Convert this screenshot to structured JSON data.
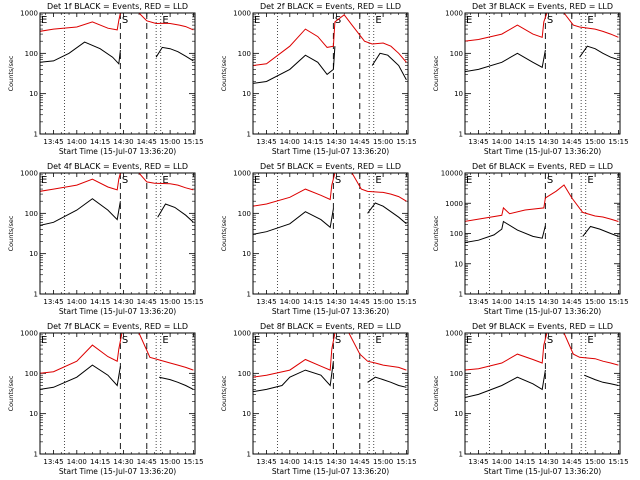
{
  "chart_data": [
    {
      "type": "line",
      "title": "Det 1f BLACK = Events, RED = LLD",
      "xlabel": "Start Time (15-Jul-07 13:36:20)",
      "ylabel": "Counts/sec",
      "y_scale": "log",
      "ylim": [
        1,
        1000
      ],
      "y_tick_labels": [
        "1",
        "10",
        "100",
        "1000"
      ],
      "x_tick_labels": [
        "13:45",
        "14:00",
        "14:15",
        "14:30",
        "14:45",
        "15:00",
        "15:15"
      ],
      "annotations": [
        "E",
        "S",
        "E"
      ],
      "series": [
        {
          "color": "#dd0000",
          "x": [
            "13:36",
            "13:45",
            "14:00",
            "14:10",
            "14:20",
            "14:26",
            "14:27",
            "14:28",
            "14:40",
            "14:45",
            "14:51",
            "14:57",
            "15:00",
            "15:06",
            "15:10",
            "15:15"
          ],
          "y": [
            350,
            400,
            450,
            600,
            420,
            380,
            650,
            1000,
            1000,
            640,
            550,
            560,
            550,
            500,
            460,
            380
          ]
        },
        {
          "color": "#000000",
          "x": [
            "13:36",
            "13:45",
            "13:55",
            "14:05",
            "14:15",
            "14:23",
            "14:27",
            "14:28",
            "14:50",
            "14:51",
            "14:55",
            "15:00",
            "15:05",
            "15:10",
            "15:15"
          ],
          "y": [
            60,
            65,
            100,
            190,
            130,
            80,
            55,
            120,
            null,
            80,
            140,
            130,
            110,
            85,
            65
          ]
        }
      ]
    },
    {
      "type": "line",
      "title": "Det 2f BLACK = Events, RED = LLD",
      "xlabel": "Start Time (15-Jul-07 13:36:20)",
      "ylabel": "Counts/sec",
      "y_scale": "log",
      "ylim": [
        1,
        1000
      ],
      "y_tick_labels": [
        "1",
        "10",
        "100",
        "1000"
      ],
      "x_tick_labels": [
        "13:45",
        "14:00",
        "14:15",
        "14:30",
        "14:45",
        "15:00",
        "15:15"
      ],
      "annotations": [
        "E",
        "S",
        "E"
      ],
      "series": [
        {
          "color": "#dd0000",
          "x": [
            "13:36",
            "13:45",
            "14:00",
            "14:10",
            "14:18",
            "14:24",
            "14:28",
            "14:29",
            "14:35",
            "14:40",
            "14:48",
            "14:53",
            "15:00",
            "15:05",
            "15:10",
            "15:15"
          ],
          "y": [
            50,
            55,
            150,
            400,
            260,
            140,
            150,
            600,
            900,
            500,
            200,
            170,
            180,
            150,
            100,
            60
          ]
        },
        {
          "color": "#000000",
          "x": [
            "13:36",
            "13:45",
            "14:00",
            "14:10",
            "14:18",
            "14:24",
            "14:28",
            "14:29",
            "14:48",
            "14:53",
            "14:58",
            "15:03",
            "15:10",
            "15:15"
          ],
          "y": [
            18,
            20,
            40,
            90,
            60,
            30,
            40,
            150,
            null,
            50,
            100,
            90,
            50,
            22
          ]
        }
      ]
    },
    {
      "type": "line",
      "title": "Det 3f BLACK = Events, RED = LLD",
      "xlabel": "Start Time (15-Jul-07 13:36:20)",
      "ylabel": "Counts/sec",
      "y_scale": "log",
      "ylim": [
        1,
        1000
      ],
      "y_tick_labels": [
        "1",
        "10",
        "100",
        "1000"
      ],
      "x_tick_labels": [
        "13:45",
        "14:00",
        "14:15",
        "14:30",
        "14:45",
        "15:00",
        "15:15"
      ],
      "annotations": [
        "E",
        "S",
        "E"
      ],
      "series": [
        {
          "color": "#dd0000",
          "x": [
            "13:36",
            "13:45",
            "14:00",
            "14:10",
            "14:20",
            "14:26",
            "14:27",
            "14:29",
            "14:40",
            "14:46",
            "14:50",
            "15:00",
            "15:05",
            "15:10",
            "15:15"
          ],
          "y": [
            200,
            220,
            300,
            500,
            300,
            250,
            600,
            1000,
            1000,
            500,
            450,
            400,
            350,
            300,
            250
          ]
        },
        {
          "color": "#000000",
          "x": [
            "13:36",
            "13:45",
            "14:00",
            "14:10",
            "14:20",
            "14:26",
            "14:28",
            "14:46",
            "14:50",
            "14:55",
            "15:00",
            "15:05",
            "15:10",
            "15:15"
          ],
          "y": [
            35,
            40,
            60,
            100,
            60,
            45,
            120,
            null,
            80,
            150,
            130,
            100,
            80,
            70
          ]
        }
      ]
    },
    {
      "type": "line",
      "title": "Det 4f BLACK = Events, RED = LLD",
      "xlabel": "Start Time (15-Jul-07 13:36:20)",
      "ylabel": "Counts/sec",
      "y_scale": "log",
      "ylim": [
        1,
        1000
      ],
      "y_tick_labels": [
        "1",
        "10",
        "100",
        "1000"
      ],
      "x_tick_labels": [
        "13:45",
        "14:00",
        "14:15",
        "14:30",
        "14:45",
        "15:00",
        "15:15"
      ],
      "annotations": [
        "E",
        "S",
        "E"
      ],
      "series": [
        {
          "color": "#dd0000",
          "x": [
            "13:36",
            "13:45",
            "14:00",
            "14:10",
            "14:20",
            "14:26",
            "14:27",
            "14:28",
            "14:40",
            "14:45",
            "14:50",
            "15:00",
            "15:05",
            "15:10",
            "15:15"
          ],
          "y": [
            350,
            400,
            500,
            700,
            450,
            380,
            700,
            1000,
            1000,
            600,
            560,
            540,
            500,
            430,
            380
          ]
        },
        {
          "color": "#000000",
          "x": [
            "13:36",
            "13:45",
            "14:00",
            "14:10",
            "14:20",
            "14:26",
            "14:28",
            "14:50",
            "14:52",
            "14:57",
            "15:03",
            "15:10",
            "15:15"
          ],
          "y": [
            50,
            60,
            120,
            230,
            120,
            70,
            200,
            null,
            80,
            170,
            140,
            90,
            60
          ]
        }
      ]
    },
    {
      "type": "line",
      "title": "Det 5f BLACK = Events, RED = LLD",
      "xlabel": "Start Time (15-Jul-07 13:36:20)",
      "ylabel": "Counts/sec",
      "y_scale": "log",
      "ylim": [
        1,
        1000
      ],
      "y_tick_labels": [
        "1",
        "10",
        "100",
        "1000"
      ],
      "x_tick_labels": [
        "13:45",
        "14:00",
        "14:15",
        "14:30",
        "14:45",
        "15:00",
        "15:15"
      ],
      "annotations": [
        "E",
        "S",
        "E"
      ],
      "series": [
        {
          "color": "#dd0000",
          "x": [
            "13:36",
            "13:45",
            "14:00",
            "14:10",
            "14:20",
            "14:26",
            "14:27",
            "14:29",
            "14:40",
            "14:46",
            "14:50",
            "15:00",
            "15:05",
            "15:10",
            "15:15"
          ],
          "y": [
            150,
            170,
            250,
            400,
            280,
            220,
            500,
            1000,
            1000,
            400,
            350,
            330,
            300,
            260,
            200
          ]
        },
        {
          "color": "#000000",
          "x": [
            "13:36",
            "13:45",
            "14:00",
            "14:10",
            "14:20",
            "14:26",
            "14:28",
            "14:46",
            "14:50",
            "14:55",
            "15:00",
            "15:05",
            "15:10",
            "15:15"
          ],
          "y": [
            30,
            35,
            55,
            110,
            70,
            45,
            130,
            null,
            100,
            180,
            150,
            110,
            80,
            55
          ]
        }
      ]
    },
    {
      "type": "line",
      "title": "Det 6f BLACK = Events, RED = LLD",
      "xlabel": "Start Time (15-Jul-07 13:36:20)",
      "ylabel": "Counts/sec",
      "y_scale": "log",
      "ylim": [
        1,
        10000
      ],
      "y_tick_labels": [
        "1",
        "10",
        "100",
        "1000",
        "10000"
      ],
      "x_tick_labels": [
        "13:45",
        "14:00",
        "14:15",
        "14:30",
        "14:45",
        "15:00",
        "15:15"
      ],
      "annotations": [
        "E",
        "S",
        "E"
      ],
      "series": [
        {
          "color": "#dd0000",
          "x": [
            "13:36",
            "13:45",
            "14:00",
            "14:01",
            "14:05",
            "14:15",
            "14:27",
            "14:28",
            "14:35",
            "14:40",
            "14:45",
            "14:52",
            "15:00",
            "15:05",
            "15:10",
            "15:15"
          ],
          "y": [
            250,
            300,
            400,
            700,
            450,
            600,
            700,
            1500,
            2500,
            4000,
            1500,
            500,
            380,
            350,
            300,
            250
          ]
        },
        {
          "color": "#000000",
          "x": [
            "13:36",
            "13:45",
            "13:55",
            "14:00",
            "14:01",
            "14:10",
            "14:20",
            "14:26",
            "14:28",
            "14:51",
            "14:52",
            "14:57",
            "15:03",
            "15:10",
            "15:15"
          ],
          "y": [
            50,
            60,
            90,
            140,
            250,
            130,
            80,
            70,
            180,
            null,
            80,
            170,
            140,
            100,
            80
          ]
        }
      ]
    },
    {
      "type": "line",
      "title": "Det 7f BLACK = Events, RED = LLD",
      "xlabel": "Start Time (15-Jul-07 13:36:20)",
      "ylabel": "Counts/sec",
      "y_scale": "log",
      "ylim": [
        1,
        1000
      ],
      "y_tick_labels": [
        "1",
        "10",
        "100",
        "1000"
      ],
      "x_tick_labels": [
        "13:45",
        "14:00",
        "14:15",
        "14:30",
        "14:45",
        "15:00",
        "15:15"
      ],
      "annotations": [
        "E",
        "S",
        "E"
      ],
      "series": [
        {
          "color": "#dd0000",
          "x": [
            "13:36",
            "13:45",
            "14:00",
            "14:10",
            "14:20",
            "14:26",
            "14:27",
            "14:29",
            "14:40",
            "14:47",
            "14:52",
            "15:00",
            "15:05",
            "15:10",
            "15:15"
          ],
          "y": [
            100,
            110,
            200,
            500,
            260,
            200,
            400,
            1000,
            1000,
            250,
            220,
            180,
            160,
            140,
            120
          ]
        },
        {
          "color": "#000000",
          "x": [
            "13:36",
            "13:45",
            "14:00",
            "14:10",
            "14:20",
            "14:26",
            "14:28",
            "14:50",
            "14:53",
            "15:00",
            "15:05",
            "15:10",
            "15:15"
          ],
          "y": [
            40,
            45,
            80,
            160,
            90,
            50,
            150,
            null,
            80,
            70,
            60,
            50,
            40
          ]
        }
      ]
    },
    {
      "type": "line",
      "title": "Det 8f BLACK = Events, RED = LLD",
      "xlabel": "Start Time (15-Jul-07 13:36:20)",
      "ylabel": "Counts/sec",
      "y_scale": "log",
      "ylim": [
        1,
        1000
      ],
      "y_tick_labels": [
        "1",
        "10",
        "100",
        "1000"
      ],
      "x_tick_labels": [
        "13:45",
        "14:00",
        "14:15",
        "14:30",
        "14:45",
        "15:00",
        "15:15"
      ],
      "annotations": [
        "E",
        "S",
        "E"
      ],
      "series": [
        {
          "color": "#dd0000",
          "x": [
            "13:36",
            "13:45",
            "14:00",
            "14:10",
            "14:20",
            "14:26",
            "14:27",
            "14:29",
            "14:38",
            "14:45",
            "14:50",
            "14:55",
            "15:00",
            "15:05",
            "15:10",
            "15:15"
          ],
          "y": [
            80,
            90,
            120,
            220,
            150,
            120,
            400,
            1000,
            1000,
            300,
            200,
            180,
            160,
            150,
            140,
            120
          ]
        },
        {
          "color": "#000000",
          "x": [
            "13:36",
            "13:45",
            "13:55",
            "14:00",
            "14:10",
            "14:20",
            "14:26",
            "14:28",
            "14:49",
            "14:50",
            "14:55",
            "15:00",
            "15:05",
            "15:10",
            "15:15"
          ],
          "y": [
            35,
            40,
            50,
            80,
            120,
            90,
            50,
            200,
            null,
            60,
            80,
            70,
            60,
            50,
            45
          ]
        }
      ]
    },
    {
      "type": "line",
      "title": "Det 9f BLACK = Events, RED = LLD",
      "xlabel": "Start Time (15-Jul-07 13:36:20)",
      "ylabel": "Counts/sec",
      "y_scale": "log",
      "ylim": [
        1,
        1000
      ],
      "y_tick_labels": [
        "1",
        "10",
        "100",
        "1000"
      ],
      "x_tick_labels": [
        "13:45",
        "14:00",
        "14:15",
        "14:30",
        "14:45",
        "15:00",
        "15:15"
      ],
      "annotations": [
        "E",
        "S",
        "E"
      ],
      "series": [
        {
          "color": "#dd0000",
          "x": [
            "13:36",
            "13:45",
            "14:00",
            "14:10",
            "14:20",
            "14:26",
            "14:27",
            "14:29",
            "14:40",
            "14:46",
            "14:50",
            "15:00",
            "15:05",
            "15:10",
            "15:15"
          ],
          "y": [
            120,
            130,
            180,
            300,
            220,
            180,
            500,
            1000,
            1000,
            300,
            250,
            230,
            200,
            180,
            160
          ]
        },
        {
          "color": "#000000",
          "x": [
            "13:36",
            "13:45",
            "14:00",
            "14:10",
            "14:20",
            "14:26",
            "14:28",
            "14:50",
            "14:53",
            "15:00",
            "15:05",
            "15:10",
            "15:15"
          ],
          "y": [
            25,
            30,
            50,
            80,
            55,
            40,
            120,
            null,
            90,
            70,
            60,
            55,
            50
          ]
        }
      ]
    }
  ]
}
